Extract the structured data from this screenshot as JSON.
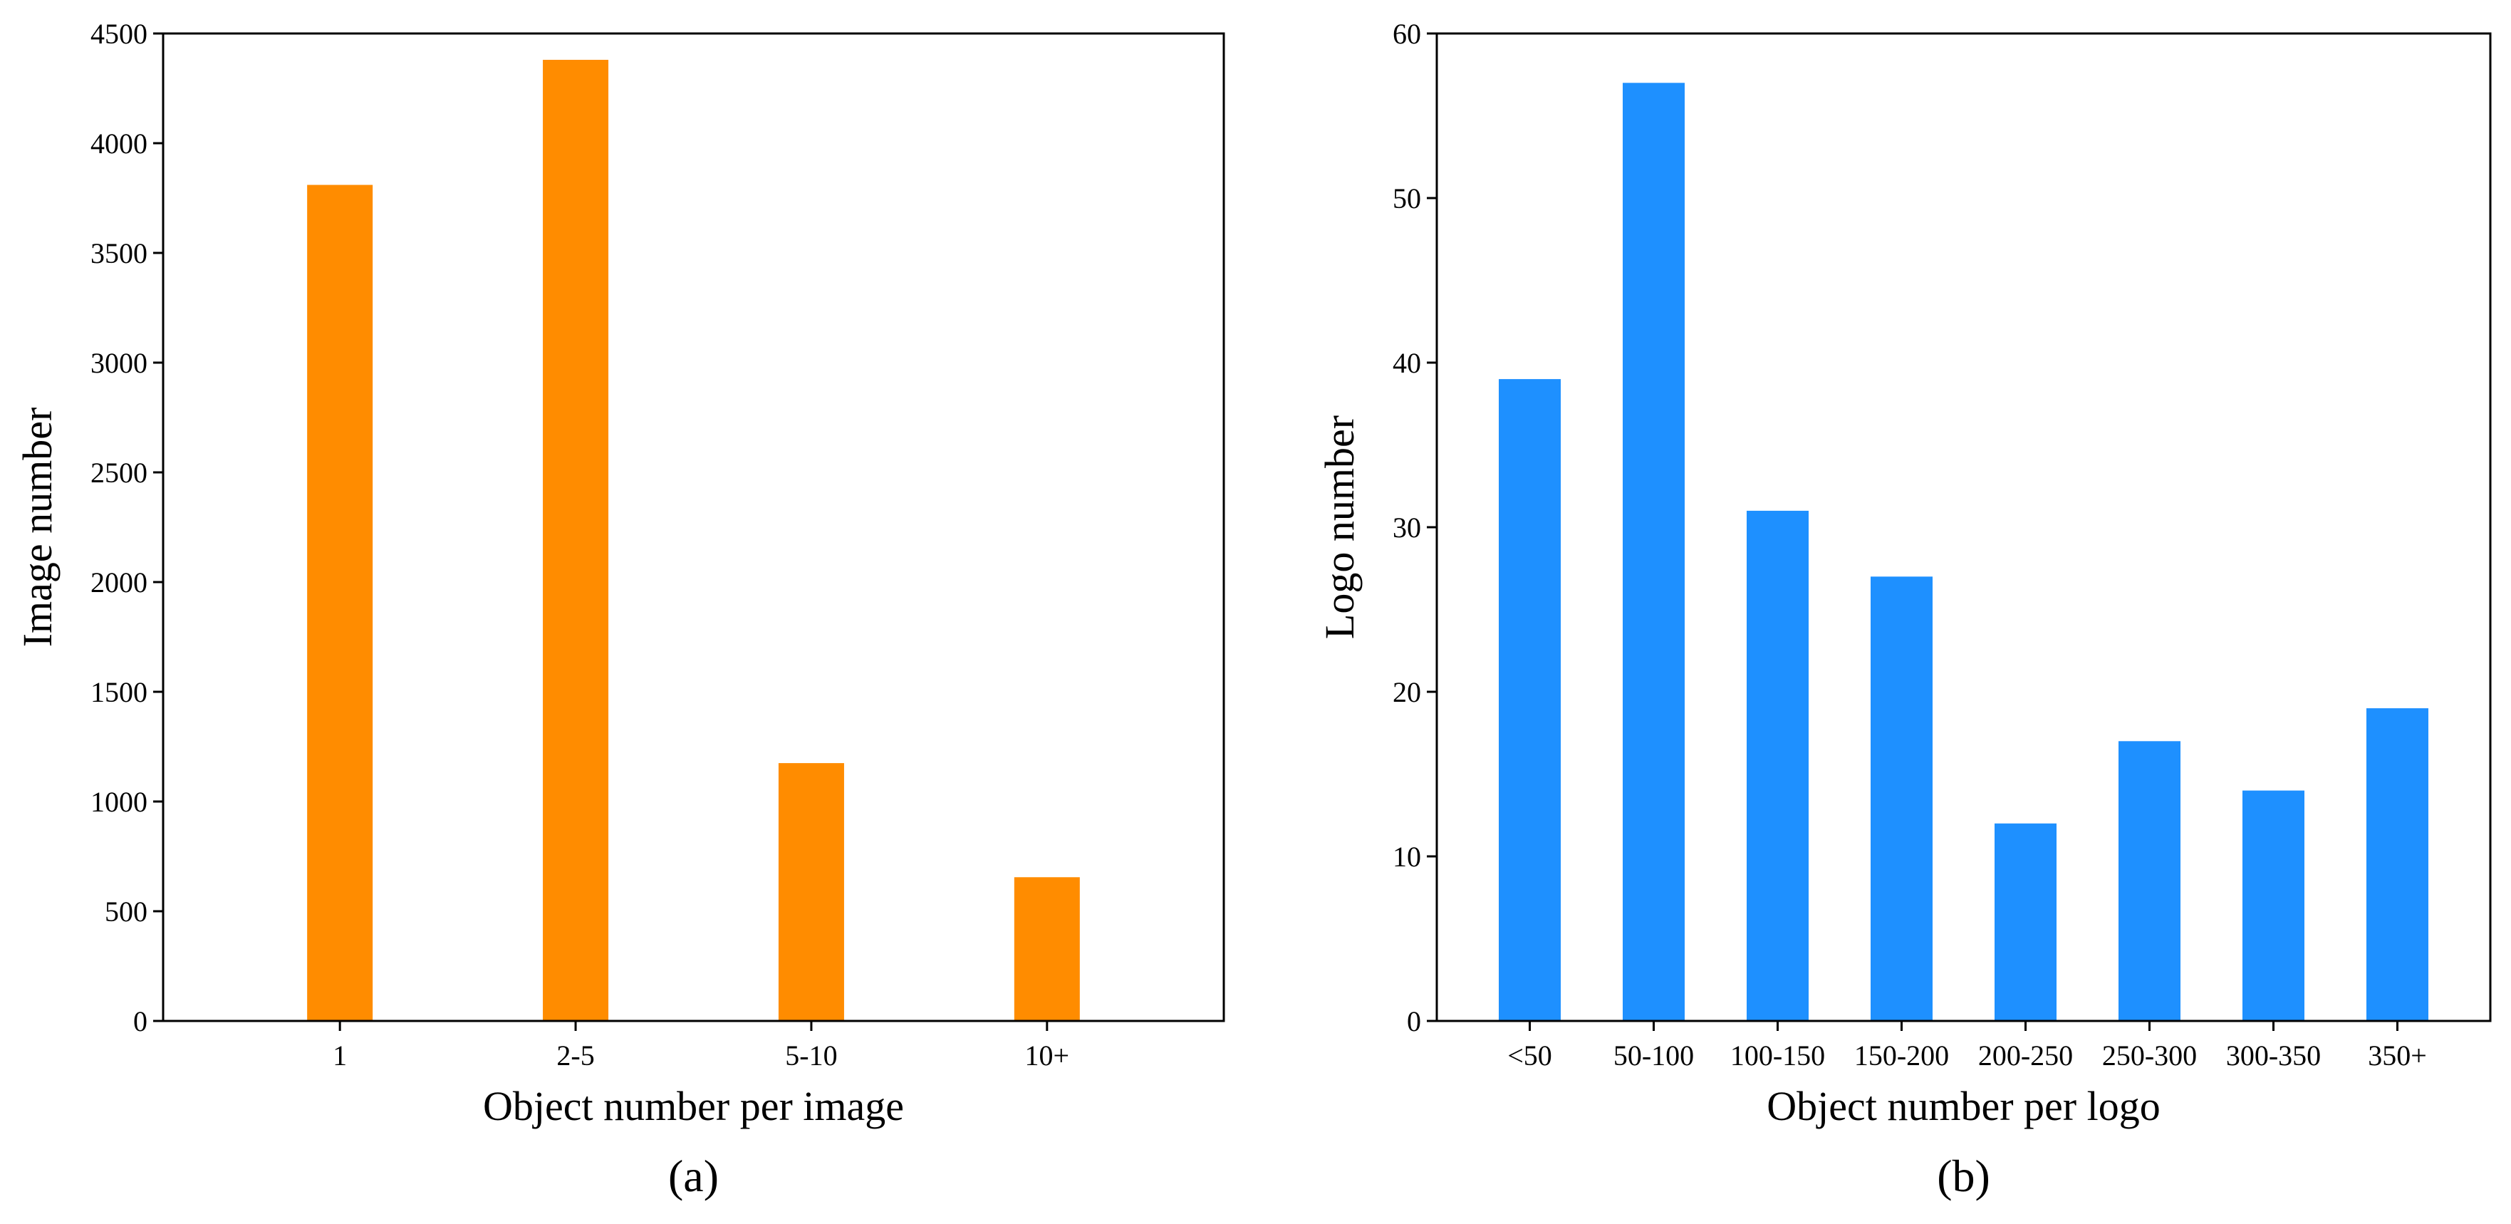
{
  "chart_data": [
    {
      "type": "bar",
      "categories": [
        "1",
        "2-5",
        "5-10",
        "10+"
      ],
      "values": [
        3810,
        4380,
        1175,
        655
      ],
      "xlabel": "Object number per image",
      "ylabel": "Image number",
      "ylim": [
        0,
        4500
      ],
      "yticks": [
        "0",
        "500",
        "1000",
        "1500",
        "2000",
        "2500",
        "3000",
        "3500",
        "4000",
        "4500"
      ],
      "panel_label": "(a)",
      "color": "#ff8c00",
      "grid": false
    },
    {
      "type": "bar",
      "categories": [
        "<50",
        "50-100",
        "100-150",
        "150-200",
        "200-250",
        "250-300",
        "300-350",
        "350+"
      ],
      "values": [
        39,
        57,
        31,
        27,
        12,
        17,
        14,
        19
      ],
      "xlabel": "Object number per logo",
      "ylabel": "Logo number",
      "ylim": [
        0,
        60
      ],
      "yticks": [
        "0",
        "10",
        "20",
        "30",
        "40",
        "50",
        "60"
      ],
      "panel_label": "(b)",
      "color": "#1e90ff",
      "grid": false
    }
  ]
}
